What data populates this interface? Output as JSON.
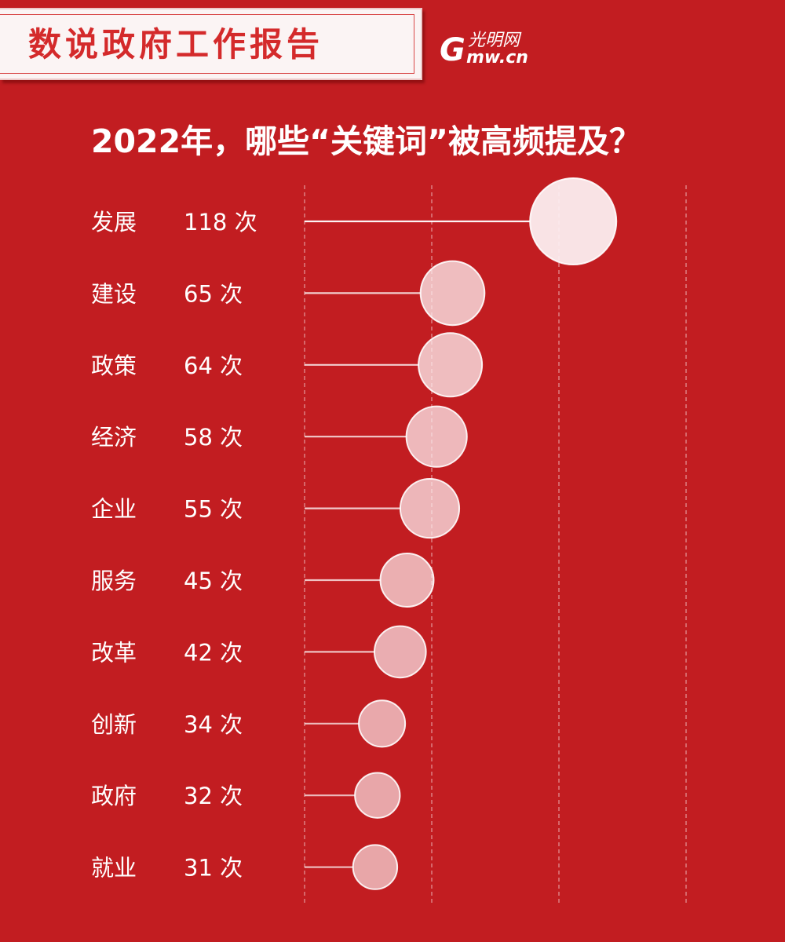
{
  "banner": {
    "title": "数说政府工作报告"
  },
  "logo": {
    "mark": "G",
    "name_cn": "光明网",
    "url": "mw.cn"
  },
  "headline": "2022年，哪些“关键词”被高频提及？",
  "unit": "次",
  "colors": {
    "background": "#c21d21",
    "bubble": "#fbeef0"
  },
  "chart_data": {
    "type": "scatter",
    "title": "2022年，哪些“关键词”被高频提及？",
    "categories": [
      "发展",
      "建设",
      "政策",
      "经济",
      "企业",
      "服务",
      "改革",
      "创新",
      "政府",
      "就业"
    ],
    "values": [
      118,
      65,
      64,
      58,
      55,
      45,
      42,
      34,
      32,
      31
    ],
    "value_labels": [
      "118 次",
      "65 次",
      "64 次",
      "58 次",
      "55 次",
      "45 次",
      "42 次",
      "34 次",
      "32 次",
      "31 次"
    ],
    "xlim": [
      0,
      130
    ],
    "grid": true,
    "legend": "none"
  }
}
